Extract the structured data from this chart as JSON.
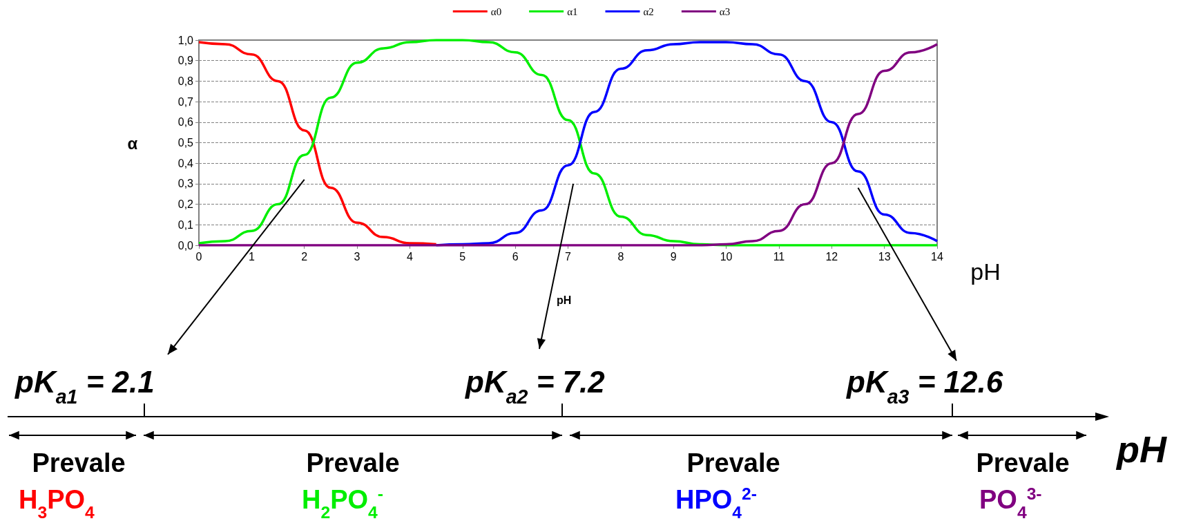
{
  "chart_data": {
    "type": "line",
    "xlabel": "pH",
    "ylabel": "α",
    "x": [
      0,
      0.5,
      1,
      1.5,
      2,
      2.5,
      3,
      3.5,
      4,
      4.5,
      5,
      5.5,
      6,
      6.5,
      7,
      7.5,
      8,
      8.5,
      9,
      9.5,
      10,
      10.5,
      11,
      11.5,
      12,
      12.5,
      13,
      13.5,
      14
    ],
    "series": [
      {
        "name": "α0",
        "color": "#ff0000",
        "values": [
          0.99,
          0.98,
          0.93,
          0.8,
          0.56,
          0.28,
          0.11,
          0.04,
          0.01,
          0.005,
          null,
          null,
          null,
          null,
          null,
          null,
          null,
          null,
          null,
          null,
          null,
          null,
          null,
          null,
          null,
          null,
          null,
          null,
          null
        ]
      },
      {
        "name": "α1",
        "color": "#00ee00",
        "values": [
          0.01,
          0.02,
          0.07,
          0.2,
          0.44,
          0.72,
          0.89,
          0.96,
          0.99,
          1,
          1,
          0.99,
          0.94,
          0.83,
          0.61,
          0.35,
          0.14,
          0.05,
          0.02,
          0.005,
          0,
          0,
          0,
          0,
          0,
          0,
          0,
          0,
          0
        ]
      },
      {
        "name": "α2",
        "color": "#0000ff",
        "values": [
          null,
          null,
          null,
          null,
          null,
          null,
          null,
          null,
          null,
          0,
          0.005,
          0.01,
          0.06,
          0.17,
          0.39,
          0.65,
          0.86,
          0.95,
          0.98,
          0.99,
          0.99,
          0.98,
          0.93,
          0.8,
          0.6,
          0.36,
          0.15,
          0.06,
          0.02
        ]
      },
      {
        "name": "α3",
        "color": "#800080",
        "values": [
          0,
          0,
          0,
          0,
          0,
          0,
          0,
          0,
          0,
          0,
          0,
          0,
          0,
          0,
          0,
          0,
          0,
          0,
          0,
          0,
          0.005,
          0.02,
          0.07,
          0.2,
          0.4,
          0.64,
          0.85,
          0.94,
          0.98
        ]
      }
    ],
    "xlim": [
      0,
      14
    ],
    "xticks": [
      0,
      1,
      2,
      3,
      4,
      5,
      6,
      7,
      8,
      9,
      10,
      11,
      12,
      13,
      14
    ],
    "ylim": [
      0,
      1
    ],
    "yticks": [
      {
        "value": 0,
        "label": "0,0"
      },
      {
        "value": 0.1,
        "label": "0,1"
      },
      {
        "value": 0.2,
        "label": "0,2"
      },
      {
        "value": 0.3,
        "label": "0,3"
      },
      {
        "value": 0.4,
        "label": "0,4"
      },
      {
        "value": 0.5,
        "label": "0,5"
      },
      {
        "value": 0.6,
        "label": "0,6"
      },
      {
        "value": 0.7,
        "label": "0,7"
      },
      {
        "value": 0.8,
        "label": "0,8"
      },
      {
        "value": 0.9,
        "label": "0,9"
      },
      {
        "value": 1,
        "label": "1,0"
      }
    ],
    "grid": "y",
    "legend": "top",
    "marker": "none",
    "line_style": "solid",
    "annotations": [
      "pH",
      "pK$_{a1}$ = 2.1",
      "pK$_{a2}$ = 7.2",
      "pK$_{a3}$ = 12.6",
      "Prevale",
      "Prevale",
      "Prevale",
      "Prevale",
      "H$_{3}$PO$_{4}$",
      "H$_{2}$PO$_{4}$$^{-}$",
      "HPO$_{4}$$^{2-}$",
      "PO$_{4}$$^{3-}$",
      "pH"
    ]
  }
}
